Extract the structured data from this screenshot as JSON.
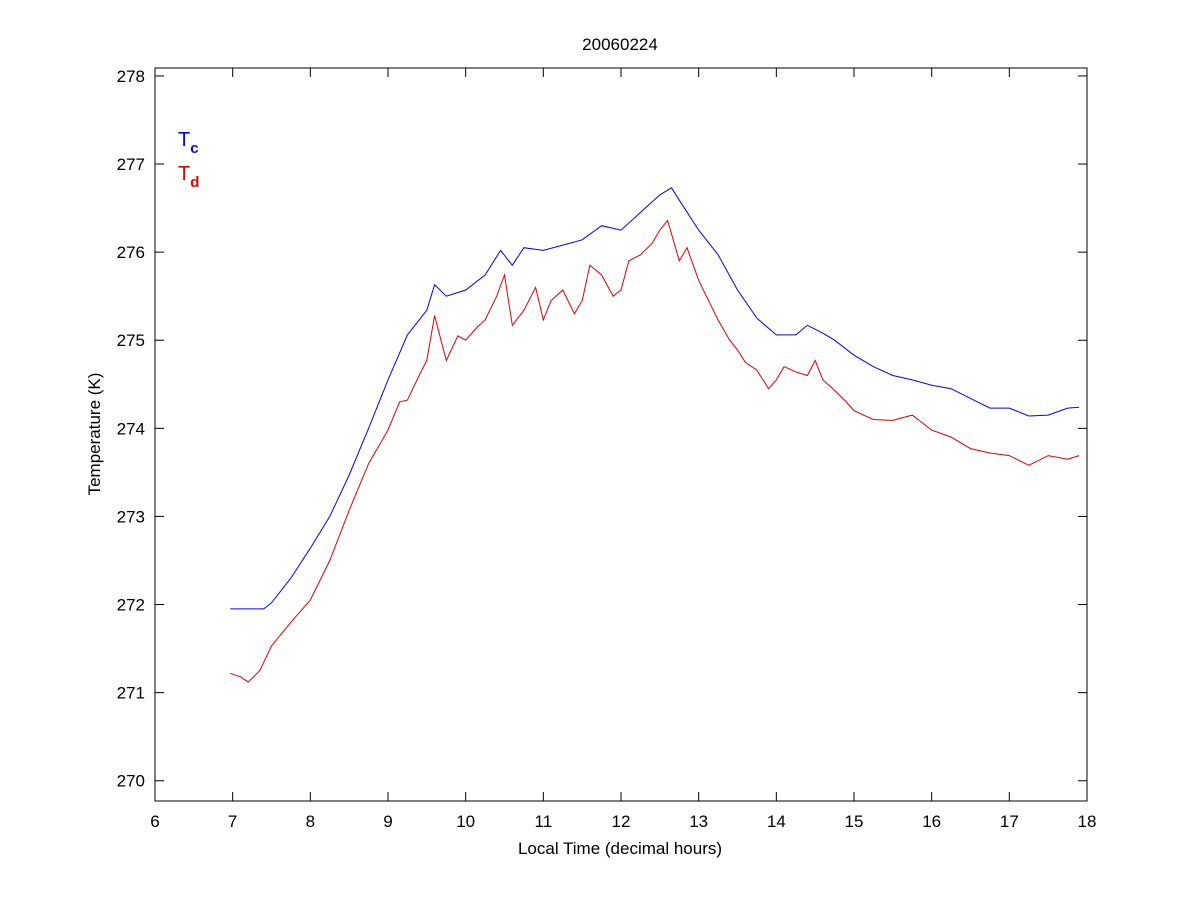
{
  "chart_data": {
    "type": "line",
    "title": "20060224",
    "xlabel": "Local Time (decimal hours)",
    "ylabel": "Temperature (K)",
    "xlim": [
      6,
      18
    ],
    "ylim": [
      269.77,
      278.09
    ],
    "xticks": [
      6,
      7,
      8,
      9,
      10,
      11,
      12,
      13,
      14,
      15,
      16,
      17,
      18
    ],
    "yticks": [
      270,
      271,
      272,
      273,
      274,
      275,
      276,
      277,
      278
    ],
    "grid": false,
    "legend_placement": "top-left",
    "series": [
      {
        "name": "Tc",
        "label_main": "T",
        "label_sub": "c",
        "color": "#0000ff",
        "x": [
          6.97,
          7.2,
          7.4,
          7.5,
          7.75,
          8,
          8.25,
          8.5,
          8.75,
          9,
          9.25,
          9.5,
          9.6,
          9.75,
          10,
          10.25,
          10.45,
          10.6,
          10.75,
          11,
          11.25,
          11.5,
          11.75,
          12,
          12.25,
          12.5,
          12.65,
          12.75,
          13,
          13.25,
          13.5,
          13.75,
          14,
          14.25,
          14.4,
          14.6,
          14.75,
          15,
          15.25,
          15.5,
          15.75,
          16,
          16.25,
          16.5,
          16.75,
          17,
          17.25,
          17.5,
          17.75,
          17.9
        ],
        "y": [
          271.95,
          271.95,
          271.95,
          272.02,
          272.3,
          272.64,
          273.0,
          273.47,
          274.0,
          274.55,
          275.06,
          275.34,
          275.63,
          275.5,
          275.57,
          275.74,
          276.02,
          275.85,
          276.05,
          276.02,
          276.08,
          276.14,
          276.3,
          276.25,
          276.45,
          276.65,
          276.73,
          276.59,
          276.25,
          275.97,
          275.57,
          275.25,
          275.06,
          275.06,
          275.17,
          275.08,
          275.0,
          274.83,
          274.7,
          274.6,
          274.55,
          274.49,
          274.45,
          274.34,
          274.23,
          274.23,
          274.14,
          274.15,
          274.23,
          274.24
        ]
      },
      {
        "name": "Td",
        "label_main": "T",
        "label_sub": "d",
        "color": "#e00000",
        "x": [
          6.97,
          7.1,
          7.2,
          7.35,
          7.5,
          7.75,
          8,
          8.25,
          8.5,
          8.75,
          9,
          9.15,
          9.25,
          9.4,
          9.5,
          9.6,
          9.75,
          9.9,
          10,
          10.15,
          10.25,
          10.4,
          10.5,
          10.6,
          10.75,
          10.9,
          11,
          11.1,
          11.25,
          11.4,
          11.5,
          11.6,
          11.75,
          11.9,
          12,
          12.1,
          12.25,
          12.4,
          12.5,
          12.6,
          12.75,
          12.85,
          13,
          13.1,
          13.25,
          13.4,
          13.5,
          13.6,
          13.75,
          13.9,
          14,
          14.1,
          14.25,
          14.4,
          14.5,
          14.6,
          14.75,
          14.9,
          15,
          15.25,
          15.5,
          15.75,
          16,
          16.25,
          16.5,
          16.75,
          17,
          17.25,
          17.5,
          17.75,
          17.9
        ],
        "y": [
          271.22,
          271.18,
          271.12,
          271.25,
          271.53,
          271.8,
          272.05,
          272.5,
          273.07,
          273.6,
          273.98,
          274.3,
          274.32,
          274.6,
          274.77,
          275.28,
          274.77,
          275.05,
          275.0,
          275.15,
          275.23,
          275.5,
          275.74,
          275.17,
          275.34,
          275.6,
          275.23,
          275.45,
          275.57,
          275.3,
          275.45,
          275.85,
          275.74,
          275.5,
          275.57,
          275.9,
          275.97,
          276.1,
          276.25,
          276.36,
          275.9,
          276.05,
          275.68,
          275.5,
          275.23,
          275.0,
          274.89,
          274.75,
          274.66,
          274.45,
          274.55,
          274.7,
          274.64,
          274.6,
          274.77,
          274.55,
          274.43,
          274.3,
          274.2,
          274.1,
          274.09,
          274.15,
          273.98,
          273.9,
          273.77,
          273.72,
          273.69,
          273.58,
          273.69,
          273.65,
          273.69
        ]
      }
    ]
  }
}
